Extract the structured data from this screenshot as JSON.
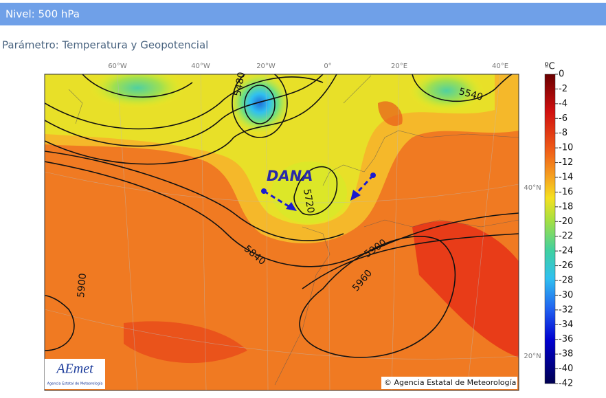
{
  "header": {
    "title": "Nivel: 500 hPa"
  },
  "subtitle": "Parámetro: Temperatura y Geopotencial",
  "map": {
    "longitude_labels": [
      "60°W",
      "40°W",
      "20°W",
      "0°",
      "20°E",
      "40°E"
    ],
    "latitude_labels": [
      "40°N",
      "20°N"
    ],
    "contour_labels": [
      "5480",
      "5540",
      "5720",
      "5840",
      "5900",
      "5960",
      "5900"
    ],
    "annotation": "DANA",
    "copyright": "© Agencia Estatal de Meteorología",
    "logo": {
      "name": "AEmet",
      "subtitle": "Agencia Estatal de Meteorología"
    }
  },
  "colorbar": {
    "label": "ºC",
    "ticks": [
      0,
      -2,
      -4,
      -6,
      -8,
      -10,
      -12,
      -14,
      -16,
      -18,
      -20,
      -22,
      -24,
      -26,
      -28,
      -30,
      -32,
      -34,
      -36,
      -38,
      -40,
      -42
    ]
  }
}
